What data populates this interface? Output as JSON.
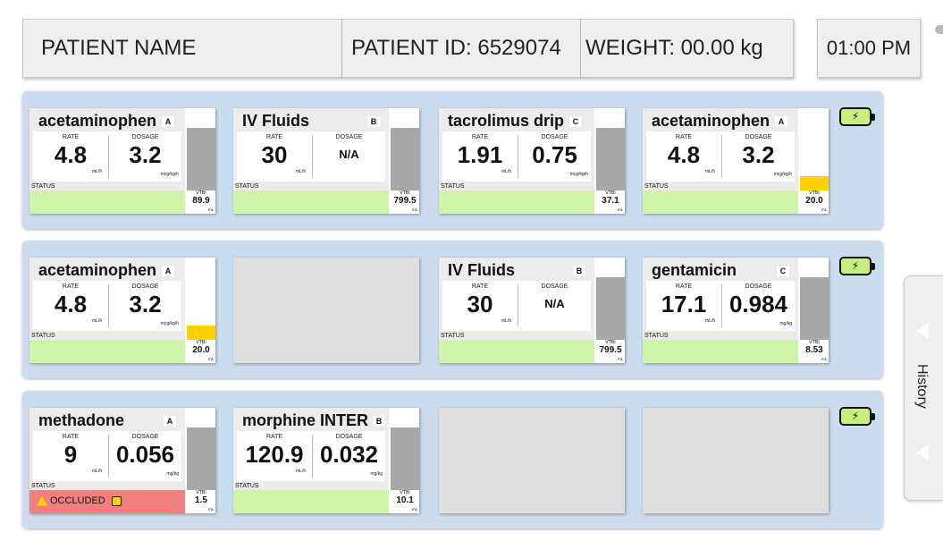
{
  "header": {
    "patient_name": "PATIENT NAME",
    "patient_id": "PATIENT ID: 6529074",
    "weight": "WEIGHT:  00.00 kg",
    "time": "01:00 PM"
  },
  "colors": {
    "row_bg": "#cadcee",
    "status_ok": "#cff3a8",
    "status_occluded": "#f08080",
    "volume_gray": "#a8a8a8",
    "volume_low": "#ffd100",
    "battery": "#c8f080"
  },
  "labels": {
    "rate": "RATE",
    "dosage": "DOSAGE",
    "status": "STATUS",
    "vtbi": "VTBI",
    "vtbi_unit": "mL"
  },
  "battery_icon": "battery-charging-icon",
  "history": {
    "label": "History",
    "icon": "chevron-left-icon"
  },
  "rows": [
    {
      "pumps": [
        {
          "empty": false,
          "drug": "acetaminophen",
          "channel": "A",
          "rate": "4.8",
          "rate_unit": "mL/h",
          "dosage": "3.2",
          "dosage_unit": "mcg/kg/h",
          "status": "",
          "vtbi": "89.9",
          "volume_level": 0.9,
          "low": false
        },
        {
          "empty": false,
          "drug": "IV Fluids",
          "channel": "B",
          "rate": "30",
          "rate_unit": "mL/h",
          "dosage": "N/A",
          "dosage_unit": "",
          "status": "",
          "vtbi": "799.5",
          "volume_level": 0.9,
          "low": false
        },
        {
          "empty": false,
          "drug": "tacrolimus drip",
          "channel": "C",
          "rate": "1.91",
          "rate_unit": "mL/h",
          "dosage": "0.75",
          "dosage_unit": "mcg/kg/h",
          "status": "",
          "vtbi": "37.1",
          "volume_level": 0.9,
          "low": false
        },
        {
          "empty": false,
          "drug": "acetaminophen",
          "channel": "A",
          "rate": "4.8",
          "rate_unit": "mL/h",
          "dosage": "3.2",
          "dosage_unit": "mcg/kg/h",
          "status": "",
          "vtbi": "20.0",
          "volume_level": 0.2,
          "low": true
        }
      ]
    },
    {
      "pumps": [
        {
          "empty": false,
          "drug": "acetaminophen",
          "channel": "A",
          "rate": "4.8",
          "rate_unit": "mL/h",
          "dosage": "3.2",
          "dosage_unit": "mcg/kg/h",
          "status": "",
          "vtbi": "20.0",
          "volume_level": 0.2,
          "low": true
        },
        {
          "empty": true
        },
        {
          "empty": false,
          "drug": "IV Fluids",
          "channel": "B",
          "rate": "30",
          "rate_unit": "mL/h",
          "dosage": "N/A",
          "dosage_unit": "",
          "status": "",
          "vtbi": "799.5",
          "volume_level": 0.9,
          "low": false
        },
        {
          "empty": false,
          "drug": "gentamicin",
          "channel": "C",
          "rate": "17.1",
          "rate_unit": "mL/h",
          "dosage": "0.984",
          "dosage_unit": "mg/kg",
          "status": "",
          "vtbi": "8.53",
          "volume_level": 0.9,
          "low": false
        }
      ]
    },
    {
      "pumps": [
        {
          "empty": false,
          "drug": "methadone",
          "channel": "A",
          "rate": "9",
          "rate_unit": "mL/h",
          "dosage": "0.056",
          "dosage_unit": "mg/kg",
          "status": "OCCLUDED",
          "vtbi": "1.5",
          "volume_level": 0.9,
          "low": false,
          "occluded": true
        },
        {
          "empty": false,
          "drug": "morphine INTER",
          "channel": "B",
          "rate": "120.9",
          "rate_unit": "mL/h",
          "dosage": "0.032",
          "dosage_unit": "mg/kg",
          "status": "",
          "vtbi": "10.1",
          "volume_level": 0.9,
          "low": false
        },
        {
          "empty": true
        },
        {
          "empty": true
        }
      ]
    }
  ]
}
